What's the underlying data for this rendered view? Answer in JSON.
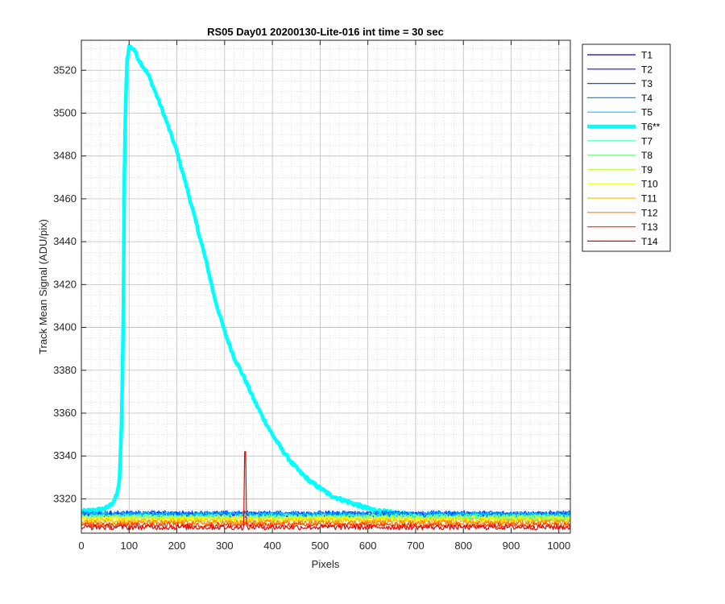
{
  "chart_data": {
    "type": "line",
    "title": "RS05 Day01 20200130-Lite-016 int time = 30 sec",
    "xlabel": "Pixels",
    "ylabel": "Track Mean Signal (ADU/pix)",
    "xlim": [
      0,
      1024
    ],
    "ylim": [
      3304,
      3534
    ],
    "xticks": [
      0,
      100,
      200,
      300,
      400,
      500,
      600,
      700,
      800,
      900,
      1000
    ],
    "yticks": [
      3320,
      3340,
      3360,
      3380,
      3400,
      3420,
      3440,
      3460,
      3480,
      3500,
      3520
    ],
    "grid": "major and minor, dotted",
    "legend_position": "outside-right",
    "series": [
      {
        "name": "T1",
        "color": "#0000c8",
        "width": 1.2,
        "base": 3312.5,
        "noise": 1.2
      },
      {
        "name": "T2",
        "color": "#0010ff",
        "width": 1.2,
        "base": 3312.8,
        "noise": 1.2
      },
      {
        "name": "T3",
        "color": "#0050ff",
        "width": 1.2,
        "base": 3313.2,
        "noise": 1.3
      },
      {
        "name": "T4",
        "color": "#0090ff",
        "width": 1.2,
        "base": 3313.0,
        "noise": 1.2
      },
      {
        "name": "T5",
        "color": "#00c8ff",
        "width": 1.2,
        "base": 3312.5,
        "noise": 1.2
      },
      {
        "name": "T6**",
        "color": "#00ffff",
        "width": 4.5,
        "points": [
          [
            0,
            3314
          ],
          [
            20,
            3314.5
          ],
          [
            40,
            3315
          ],
          [
            55,
            3316
          ],
          [
            65,
            3318
          ],
          [
            75,
            3322
          ],
          [
            80,
            3330
          ],
          [
            85,
            3360
          ],
          [
            88,
            3410
          ],
          [
            90,
            3470
          ],
          [
            93,
            3510
          ],
          [
            96,
            3525
          ],
          [
            100,
            3531
          ],
          [
            110,
            3530
          ],
          [
            120,
            3525
          ],
          [
            140,
            3518
          ],
          [
            160,
            3507
          ],
          [
            180,
            3495
          ],
          [
            200,
            3482
          ],
          [
            220,
            3466
          ],
          [
            240,
            3449
          ],
          [
            260,
            3432
          ],
          [
            280,
            3413
          ],
          [
            300,
            3398
          ],
          [
            320,
            3386
          ],
          [
            340,
            3377
          ],
          [
            360,
            3367
          ],
          [
            380,
            3358
          ],
          [
            400,
            3350
          ],
          [
            420,
            3343
          ],
          [
            440,
            3337
          ],
          [
            460,
            3332
          ],
          [
            480,
            3328
          ],
          [
            500,
            3325
          ],
          [
            520,
            3322
          ],
          [
            540,
            3320
          ],
          [
            560,
            3318.5
          ],
          [
            580,
            3317
          ],
          [
            600,
            3315.5
          ],
          [
            620,
            3314.5
          ],
          [
            640,
            3313.8
          ],
          [
            660,
            3313.2
          ],
          [
            680,
            3312.8
          ],
          [
            700,
            3312.4
          ],
          [
            720,
            3312.2
          ],
          [
            740,
            3312
          ],
          [
            760,
            3311.8
          ],
          [
            800,
            3311.6
          ],
          [
            850,
            3311.5
          ],
          [
            900,
            3311.3
          ],
          [
            950,
            3311.2
          ],
          [
            1000,
            3311
          ],
          [
            1024,
            3311
          ]
        ]
      },
      {
        "name": "T7",
        "color": "#40ffc0",
        "width": 1.2,
        "base": 3311.8,
        "noise": 1.2
      },
      {
        "name": "T8",
        "color": "#80ff80",
        "width": 1.2,
        "base": 3311.5,
        "noise": 1.2
      },
      {
        "name": "T9",
        "color": "#c0ff40",
        "width": 1.2,
        "base": 3311.0,
        "noise": 1.2
      },
      {
        "name": "T10",
        "color": "#ffff00",
        "width": 1.2,
        "base": 3310.6,
        "noise": 1.2
      },
      {
        "name": "T11",
        "color": "#ffc000",
        "width": 1.2,
        "base": 3309.8,
        "noise": 1.2
      },
      {
        "name": "T12",
        "color": "#ff8000",
        "width": 1.2,
        "base": 3308.8,
        "noise": 1.2
      },
      {
        "name": "T13",
        "color": "#ff4000",
        "width": 1.2,
        "base": 3307.8,
        "noise": 1.2
      },
      {
        "name": "T14",
        "color": "#f00000",
        "width": 1.2,
        "base": 3306.8,
        "noise": 1.3,
        "spike": {
          "x": 343,
          "y": 3342
        }
      }
    ]
  }
}
